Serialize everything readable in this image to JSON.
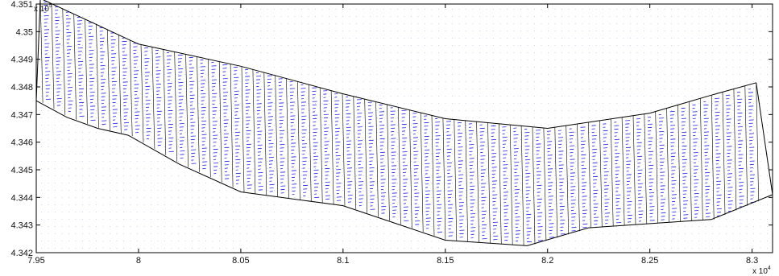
{
  "chart_data": {
    "type": "line",
    "title": "",
    "xlabel": "",
    "ylabel": "",
    "xlim": [
      7.95,
      8.31
    ],
    "ylim": [
      4.342,
      4.351
    ],
    "x_ticks": [
      "7.95",
      "8",
      "8.05",
      "8.1",
      "8.15",
      "8.2",
      "8.25",
      "8.3"
    ],
    "y_ticks": [
      "4.342",
      "4.343",
      "4.344",
      "4.345",
      "4.346",
      "4.347",
      "4.348",
      "4.349",
      "4.35",
      "4.351"
    ],
    "x_multiplier": "x 10",
    "x_multiplier_exp": "4",
    "y_multiplier": "x 10",
    "y_multiplier_exp": "5",
    "grid": false,
    "colors": {
      "outline": "#000000",
      "vectors": "#1f1fe0",
      "background_grid": "#9db0e8",
      "axes": "#000000"
    },
    "series": [
      {
        "role": "domain-upper-boundary",
        "x": [
          7.952,
          8.0,
          8.05,
          8.1,
          8.15,
          8.2,
          8.25,
          8.28,
          8.302
        ],
        "y": [
          4.3512,
          4.34955,
          4.34875,
          4.34775,
          4.34685,
          4.3465,
          4.34705,
          4.3477,
          4.34815
        ]
      },
      {
        "role": "domain-lower-boundary",
        "x": [
          7.95,
          7.965,
          7.98,
          7.995,
          8.02,
          8.05,
          8.1,
          8.15,
          8.19,
          8.22,
          8.25,
          8.28,
          8.31
        ],
        "y": [
          4.3475,
          4.3469,
          4.3465,
          4.34625,
          4.3452,
          4.3442,
          4.3437,
          4.34245,
          4.34225,
          4.3429,
          4.34305,
          4.3432,
          4.3441
        ]
      }
    ],
    "cross_section_count": 64
  }
}
